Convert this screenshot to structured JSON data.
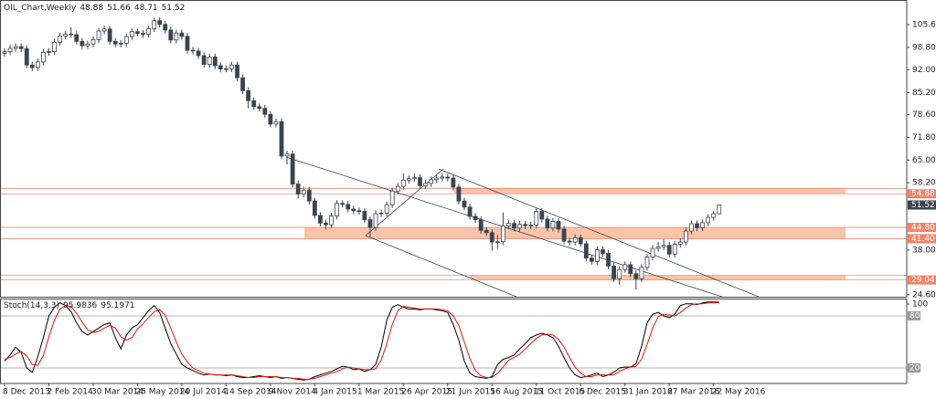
{
  "chart_data": [
    {
      "type": "candlestick",
      "title": "OIL_Chart,Weekly",
      "categories": [
        "8 Dec 2013",
        null,
        null,
        null,
        null,
        null,
        null,
        null,
        "2 Feb 2014",
        null,
        null,
        null,
        null,
        null,
        null,
        null,
        "30 Mar 2014",
        null,
        null,
        null,
        null,
        null,
        null,
        null,
        "25 May 2014",
        null,
        null,
        null,
        null,
        null,
        null,
        null,
        "20 Jul 2014",
        null,
        null,
        null,
        null,
        null,
        null,
        null,
        "14 Sep 2014",
        null,
        null,
        null,
        null,
        null,
        null,
        null,
        "9 Nov 2014",
        null,
        null,
        null,
        null,
        null,
        null,
        null,
        "4 Jan 2015",
        null,
        null,
        null,
        null,
        null,
        null,
        null,
        "1 Mar 2015",
        null,
        null,
        null,
        null,
        null,
        null,
        null,
        "26 Apr 2015",
        null,
        null,
        null,
        null,
        null,
        null,
        null,
        "21 Jun 2015",
        null,
        null,
        null,
        null,
        null,
        null,
        null,
        "16 Aug 2015",
        null,
        null,
        null,
        null,
        null,
        null,
        null,
        "11 Oct 2015",
        null,
        null,
        null,
        null,
        null,
        null,
        null,
        "6 Dec 2015",
        null,
        null,
        null,
        null,
        null,
        null,
        null,
        "31 Jan 2016",
        null,
        null,
        null,
        null,
        null,
        null,
        null,
        "27 Mar 2016",
        null,
        null,
        null,
        null,
        null,
        null,
        null,
        "22 May 2016",
        null
      ],
      "open": [
        97.0,
        97.5,
        98.5,
        99.0,
        98.4,
        93.5,
        92.7,
        94.4,
        97.3,
        97.5,
        100.3,
        102.2,
        102.8,
        102.6,
        100.6,
        99.3,
        99.8,
        101.1,
        103.7,
        104.3,
        100.6,
        99.8,
        100.0,
        102.0,
        103.5,
        103.0,
        102.7,
        104.4,
        106.8,
        105.7,
        104.0,
        101.0,
        103.1,
        102.1,
        97.9,
        97.7,
        96.3,
        93.7,
        95.9,
        93.3,
        92.3,
        92.4,
        93.5,
        89.7,
        85.8,
        82.8,
        81.0,
        80.5,
        78.7,
        75.8,
        76.5,
        66.2,
        66.8,
        57.8,
        54.8,
        56.0,
        52.7,
        48.4,
        46.1,
        45.6,
        48.2,
        52.0,
        51.7,
        50.3,
        49.8,
        49.6,
        47.1,
        44.8,
        48.9,
        49.1,
        51.6,
        55.7,
        57.1,
        59.0,
        59.4,
        59.7,
        57.3,
        58.0,
        59.1,
        59.6,
        59.9,
        59.6,
        56.9,
        52.7,
        50.9,
        48.1,
        47.1,
        43.9,
        43.2,
        40.4,
        40.5,
        45.2,
        46.0,
        44.6,
        45.7,
        45.3,
        45.5,
        49.6,
        47.3,
        44.6,
        46.6,
        44.3,
        40.7,
        40.4,
        41.7,
        39.9,
        35.6,
        34.6,
        38.1,
        37.0,
        33.2,
        29.4,
        32.2,
        33.6,
        30.9,
        29.4,
        32.8,
        35.9,
        38.5,
        39.0,
        39.4,
        36.8,
        39.7,
        40.4,
        43.7,
        45.9,
        44.7,
        46.2,
        47.8,
        48.88
      ],
      "high": [
        98.5,
        99.5,
        100.0,
        100.0,
        99.4,
        94.5,
        95.4,
        98.3,
        98.5,
        101.3,
        103.2,
        103.8,
        104.8,
        103.6,
        101.6,
        100.8,
        102.1,
        104.7,
        105.3,
        105.3,
        101.6,
        101.0,
        103.0,
        104.5,
        104.5,
        104.0,
        105.4,
        107.7,
        107.8,
        106.7,
        105.0,
        104.1,
        104.1,
        103.1,
        98.9,
        98.7,
        97.3,
        96.9,
        96.9,
        94.3,
        93.4,
        94.5,
        94.5,
        90.7,
        86.8,
        83.8,
        82.0,
        81.5,
        79.7,
        77.5,
        77.5,
        67.8,
        67.8,
        58.8,
        57.0,
        57.0,
        53.7,
        49.4,
        47.1,
        49.2,
        53.0,
        53.0,
        52.7,
        51.3,
        50.8,
        50.6,
        48.1,
        49.9,
        50.1,
        52.6,
        56.7,
        58.1,
        61.0,
        60.4,
        61.0,
        60.7,
        59.0,
        60.1,
        60.6,
        61.0,
        60.9,
        60.6,
        57.9,
        53.7,
        51.9,
        49.1,
        48.1,
        44.9,
        44.2,
        42.5,
        49.3,
        47.0,
        47.0,
        46.7,
        46.7,
        46.5,
        50.6,
        50.6,
        48.3,
        47.6,
        47.6,
        45.3,
        41.7,
        42.7,
        42.7,
        40.9,
        36.6,
        39.1,
        39.1,
        38.0,
        34.2,
        33.2,
        34.6,
        34.6,
        31.9,
        33.8,
        36.9,
        39.5,
        40.5,
        41.2,
        40.4,
        40.7,
        41.4,
        44.7,
        46.9,
        46.9,
        47.2,
        48.8,
        49.7,
        51.66
      ],
      "low": [
        96.0,
        96.5,
        97.5,
        97.4,
        92.5,
        91.7,
        91.7,
        93.4,
        96.3,
        96.5,
        99.3,
        101.2,
        101.6,
        99.6,
        98.3,
        98.3,
        98.8,
        100.1,
        102.7,
        99.6,
        98.8,
        98.8,
        99.0,
        101.0,
        102.0,
        101.7,
        101.7,
        103.4,
        104.7,
        103.0,
        100.0,
        100.0,
        101.1,
        96.9,
        96.7,
        95.3,
        92.7,
        92.7,
        92.3,
        91.3,
        91.3,
        91.4,
        88.7,
        84.8,
        80.5,
        80.0,
        79.5,
        77.7,
        74.8,
        74.8,
        65.2,
        63.7,
        56.8,
        53.5,
        53.8,
        51.7,
        47.4,
        45.1,
        44.2,
        44.6,
        47.2,
        50.7,
        49.3,
        48.8,
        48.6,
        46.1,
        42.0,
        43.8,
        47.9,
        48.1,
        50.6,
        54.7,
        56.1,
        58.0,
        58.4,
        56.3,
        56.3,
        57.0,
        58.1,
        58.6,
        58.6,
        55.9,
        51.7,
        49.9,
        47.1,
        46.1,
        42.9,
        42.2,
        37.8,
        38.4,
        39.5,
        44.2,
        43.6,
        43.6,
        44.3,
        44.3,
        44.5,
        46.3,
        43.6,
        43.6,
        43.3,
        39.7,
        39.4,
        39.4,
        38.9,
        34.6,
        33.6,
        33.6,
        36.0,
        32.2,
        28.4,
        27.6,
        31.2,
        29.9,
        26.1,
        28.4,
        31.8,
        34.9,
        37.5,
        38.0,
        35.8,
        35.8,
        38.7,
        39.4,
        42.7,
        43.7,
        43.7,
        45.2,
        46.8,
        48.71
      ],
      "close": [
        97.5,
        98.5,
        99.0,
        98.4,
        93.5,
        92.7,
        94.4,
        97.3,
        97.5,
        100.3,
        102.2,
        102.8,
        102.6,
        100.6,
        99.3,
        99.8,
        101.1,
        103.7,
        104.3,
        100.6,
        99.8,
        100.0,
        102.0,
        103.5,
        103.0,
        102.7,
        104.4,
        106.8,
        105.7,
        104.0,
        101.0,
        103.1,
        102.1,
        97.9,
        97.7,
        96.3,
        93.7,
        95.9,
        93.3,
        92.3,
        92.4,
        93.5,
        89.7,
        85.8,
        82.8,
        81.0,
        80.5,
        78.7,
        75.8,
        76.5,
        66.2,
        66.8,
        57.8,
        54.8,
        56.0,
        52.7,
        48.4,
        46.1,
        45.6,
        48.2,
        52.0,
        51.7,
        50.3,
        49.8,
        49.6,
        47.1,
        44.8,
        48.9,
        49.1,
        51.6,
        55.7,
        57.1,
        59.0,
        59.4,
        59.7,
        57.3,
        58.0,
        59.1,
        59.6,
        59.9,
        59.6,
        56.9,
        52.7,
        50.9,
        48.1,
        47.1,
        43.9,
        43.2,
        40.4,
        40.5,
        45.2,
        46.0,
        44.6,
        45.7,
        45.3,
        45.5,
        49.6,
        47.3,
        44.6,
        46.6,
        44.3,
        40.7,
        40.4,
        41.7,
        39.9,
        35.6,
        34.6,
        38.1,
        37.0,
        33.2,
        29.4,
        32.2,
        33.6,
        30.9,
        29.4,
        32.8,
        35.9,
        38.5,
        39.0,
        39.4,
        36.8,
        39.7,
        40.4,
        43.7,
        45.9,
        44.7,
        46.2,
        47.8,
        48.88,
        51.52
      ],
      "up_color": "#ffffff",
      "down_color": "#3b4451",
      "edge_color": "#3b4451",
      "ylim": [
        24,
        113
      ],
      "yticks": [
        {
          "value": 105.6,
          "label": "105.60"
        },
        {
          "value": 98.8,
          "label": "98.80"
        },
        {
          "value": 92,
          "label": "92.00"
        },
        {
          "value": 85.2,
          "label": "85.20"
        },
        {
          "value": 78.6,
          "label": "78.60"
        },
        {
          "value": 71.8,
          "label": "71.80"
        },
        {
          "value": 65,
          "label": "65.00"
        },
        {
          "value": 58.2,
          "label": "58.20"
        },
        {
          "value": 38,
          "label": "38.00"
        },
        {
          "value": 24.6,
          "label": "24.60"
        }
      ],
      "price_labels": [
        {
          "value": 54.88,
          "label": "54.88"
        },
        {
          "value": 44.8,
          "label": "44.80"
        },
        {
          "value": 41.4,
          "label": "41.40"
        },
        {
          "value": 29.04,
          "label": "29.04"
        }
      ],
      "zones": [
        {
          "low": 54.88,
          "high": 56.5
        },
        {
          "low": 41.4,
          "high": 44.8
        },
        {
          "low": 29.04,
          "high": 30.4
        }
      ],
      "zone_color": "#f9c4a8",
      "zone_line_color": "#f08a78",
      "label_color": "#f4826a"
    },
    {
      "type": "line",
      "title": "Stoch(14,3,3)",
      "series": [
        {
          "color": "#000000",
          "values": [
            28,
            35,
            44,
            38,
            20,
            15,
            33,
            55,
            80,
            90,
            95,
            92,
            85,
            72,
            62,
            58,
            62,
            66,
            70,
            72,
            55,
            42,
            58,
            66,
            70,
            78,
            86,
            92,
            84,
            66,
            48,
            36,
            24,
            20,
            17,
            14,
            12,
            13,
            12,
            12,
            11,
            12,
            10,
            9,
            9,
            10,
            11,
            10,
            9,
            10,
            8,
            9,
            8,
            7,
            6,
            7,
            10,
            12,
            14,
            16,
            19,
            22,
            21,
            18,
            19,
            16,
            18,
            24,
            44,
            75,
            90,
            93,
            90,
            88,
            88,
            87,
            88,
            88,
            87,
            86,
            84,
            70,
            52,
            28,
            14,
            10,
            9,
            8,
            10,
            24,
            30,
            32,
            35,
            42,
            48,
            55,
            58,
            60,
            58,
            55,
            45,
            32,
            20,
            12,
            9,
            10,
            12,
            14,
            10,
            12,
            15,
            20,
            21,
            21,
            25,
            45,
            72,
            82,
            84,
            80,
            78,
            82,
            92,
            94,
            94,
            93,
            95,
            96,
            96,
            95.9836
          ]
        },
        {
          "color": "#e8140c",
          "values": [
            30,
            32,
            36,
            39,
            34,
            24,
            23,
            34,
            56,
            75,
            88,
            92,
            91,
            83,
            73,
            64,
            61,
            62,
            66,
            69,
            66,
            56,
            52,
            55,
            65,
            71,
            78,
            85,
            87,
            81,
            66,
            50,
            36,
            27,
            20,
            17,
            14,
            13,
            12,
            12,
            12,
            12,
            11,
            10,
            9,
            9,
            10,
            10,
            10,
            10,
            9,
            9,
            8,
            8,
            7,
            7,
            8,
            10,
            12,
            14,
            16,
            19,
            21,
            20,
            19,
            18,
            18,
            19,
            29,
            48,
            70,
            86,
            91,
            90,
            89,
            88,
            88,
            88,
            88,
            87,
            86,
            80,
            69,
            50,
            31,
            17,
            11,
            9,
            9,
            14,
            21,
            29,
            32,
            36,
            42,
            48,
            54,
            58,
            59,
            58,
            53,
            44,
            32,
            21,
            14,
            10,
            10,
            12,
            12,
            12,
            12,
            16,
            19,
            21,
            22,
            30,
            47,
            66,
            79,
            82,
            81,
            80,
            84,
            89,
            93,
            94,
            94,
            95,
            95,
            95.1971
          ]
        }
      ],
      "ylim": [
        0,
        100
      ],
      "yticks": [
        100,
        80,
        20
      ],
      "levels": [
        80,
        20
      ]
    }
  ]
}
